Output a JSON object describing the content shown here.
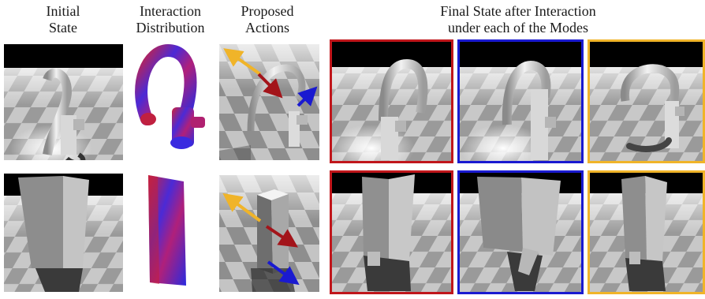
{
  "headers": {
    "initial_state": [
      "Initial",
      "State"
    ],
    "interaction_distribution": [
      "Interaction",
      "Distribution"
    ],
    "proposed_actions": [
      "Proposed",
      "Actions"
    ],
    "final_state": [
      "Final State after Interaction",
      "under each of the Modes"
    ]
  },
  "mode_colors": [
    "#c0161b",
    "#1a1ad0",
    "#f0b429"
  ],
  "rows": [
    {
      "object": "faucet-icon"
    },
    {
      "object": "box-icon"
    }
  ]
}
